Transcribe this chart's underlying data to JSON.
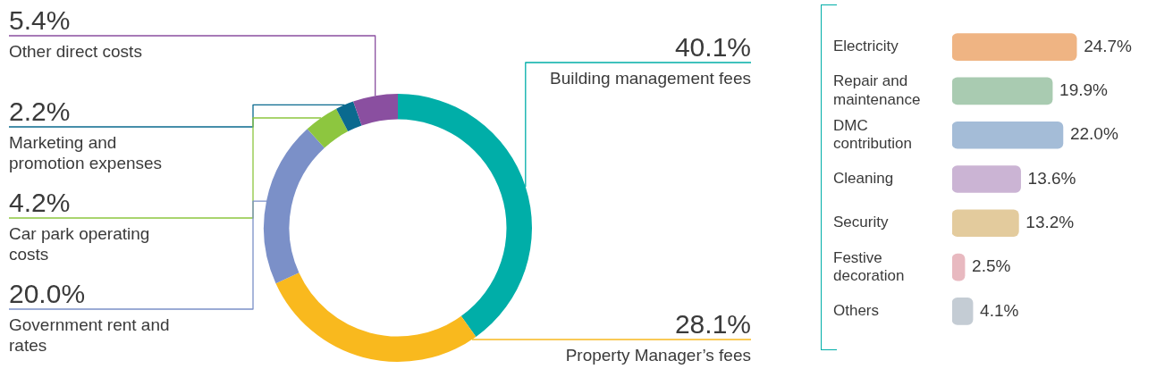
{
  "chart_data": [
    {
      "type": "donut",
      "categories": [
        "Building management fees",
        "Property Manager’s fees",
        "Government rent and rates",
        "Car park operating costs",
        "Marketing and promotion expenses",
        "Other direct costs"
      ],
      "values": [
        40.1,
        28.1,
        20.0,
        4.2,
        2.2,
        5.4
      ],
      "colors": [
        "#00aea8",
        "#f9b91e",
        "#7b90c8",
        "#8dc63f",
        "#0a6a8f",
        "#8a4fa0"
      ],
      "value_labels": [
        "40.1%",
        "28.1%",
        "20.0%",
        "4.2%",
        "2.2%",
        "5.4%"
      ]
    },
    {
      "type": "bar",
      "orientation": "horizontal",
      "categories": [
        "Electricity",
        "Repair and maintenance",
        "DMC contribution",
        "Cleaning",
        "Security",
        "Festive decoration",
        "Others"
      ],
      "values": [
        24.7,
        19.9,
        22.0,
        13.6,
        13.2,
        2.5,
        4.1
      ],
      "colors": [
        "#efb483",
        "#a9cbb1",
        "#a4bcd7",
        "#cbb4d4",
        "#e3cb9d",
        "#e8b9c0",
        "#c4ccd4"
      ],
      "value_labels": [
        "24.7%",
        "19.9%",
        "22.0%",
        "13.6%",
        "13.2%",
        "2.5%",
        "4.1%"
      ]
    }
  ]
}
